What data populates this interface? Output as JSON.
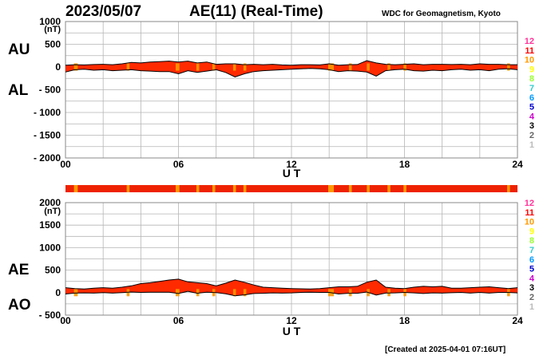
{
  "header": {
    "date": "2023/05/07",
    "title": "AE(11) (Real-Time)",
    "institution": "WDC for Geomagnetism, Kyoto"
  },
  "footer": {
    "created": "[Created at 2025-04-01 07:16UT]"
  },
  "colors": {
    "fill_main": "#ff2a00",
    "fill_minor": "#ff9900",
    "bar": "#ee2200",
    "bar_minor": "#ff9900"
  },
  "legend": {
    "items": [
      {
        "label": "12",
        "color": "#ff3399"
      },
      {
        "label": "11",
        "color": "#ff0000"
      },
      {
        "label": "10",
        "color": "#ff9900"
      },
      {
        "label": "9",
        "color": "#ffff00"
      },
      {
        "label": "8",
        "color": "#99ff33"
      },
      {
        "label": "7",
        "color": "#33cccc"
      },
      {
        "label": "6",
        "color": "#0099ff"
      },
      {
        "label": "5",
        "color": "#0000cc"
      },
      {
        "label": "4",
        "color": "#cc00cc"
      },
      {
        "label": "3",
        "color": "#000000"
      },
      {
        "label": "2",
        "color": "#666666"
      },
      {
        "label": "1",
        "color": "#bbbbbb"
      }
    ]
  },
  "chart_data": [
    {
      "type": "area",
      "name": "AU/AL",
      "upper_label": "AU",
      "lower_label": "AL",
      "unit": "(nT)",
      "xlabel": "U T",
      "x_ticks": [
        "00",
        "06",
        "12",
        "18",
        "24"
      ],
      "y_ticks": [
        "1000",
        "500",
        "0",
        "- 500",
        "- 1000",
        "- 1500",
        "- 2000"
      ],
      "xlim": [
        0,
        24
      ],
      "ylim": [
        -2000,
        1000
      ],
      "x": [
        0,
        0.5,
        1,
        1.5,
        2,
        2.5,
        3,
        3.5,
        4,
        4.5,
        5,
        5.5,
        6,
        6.5,
        7,
        7.5,
        8,
        8.5,
        9,
        9.5,
        10,
        10.5,
        11,
        11.5,
        12,
        12.5,
        13,
        13.5,
        14,
        14.5,
        15,
        15.5,
        16,
        16.5,
        17,
        17.5,
        18,
        18.5,
        19,
        19.5,
        20,
        20.5,
        21,
        21.5,
        22,
        22.5,
        23,
        23.5,
        24
      ],
      "series": [
        {
          "name": "AU",
          "values": [
            40,
            50,
            45,
            55,
            60,
            50,
            70,
            100,
            90,
            110,
            120,
            130,
            110,
            130,
            90,
            110,
            60,
            70,
            70,
            50,
            60,
            50,
            60,
            45,
            40,
            50,
            50,
            45,
            70,
            40,
            50,
            55,
            140,
            90,
            60,
            50,
            60,
            70,
            50,
            60,
            60,
            55,
            60,
            50,
            70,
            60,
            60,
            50,
            50
          ]
        },
        {
          "name": "AL",
          "values": [
            -110,
            -60,
            -50,
            -70,
            -60,
            -80,
            -70,
            -60,
            -80,
            -90,
            -100,
            -100,
            -150,
            -80,
            -120,
            -90,
            -60,
            -120,
            -220,
            -150,
            -100,
            -80,
            -70,
            -60,
            -50,
            -40,
            -30,
            -40,
            -60,
            -100,
            -80,
            -90,
            -110,
            -200,
            -80,
            -60,
            -50,
            -80,
            -90,
            -70,
            -80,
            -60,
            -50,
            -70,
            -60,
            -80,
            -50,
            -40,
            -60
          ]
        }
      ]
    },
    {
      "type": "area",
      "name": "AE/AO",
      "upper_label": "AE",
      "lower_label": "AO",
      "unit": "(nT)",
      "xlabel": "U T",
      "x_ticks": [
        "00",
        "06",
        "12",
        "18",
        "24"
      ],
      "y_ticks": [
        "2000",
        "1500",
        "1000",
        "500",
        "0",
        "- 500"
      ],
      "xlim": [
        0,
        24
      ],
      "ylim": [
        -500,
        2000
      ],
      "x": [
        0,
        0.5,
        1,
        1.5,
        2,
        2.5,
        3,
        3.5,
        4,
        4.5,
        5,
        5.5,
        6,
        6.5,
        7,
        7.5,
        8,
        8.5,
        9,
        9.5,
        10,
        10.5,
        11,
        11.5,
        12,
        12.5,
        13,
        13.5,
        14,
        14.5,
        15,
        15.5,
        16,
        16.5,
        17,
        17.5,
        18,
        18.5,
        19,
        19.5,
        20,
        20.5,
        21,
        21.5,
        22,
        22.5,
        23,
        23.5,
        24
      ],
      "series": [
        {
          "name": "AE",
          "values": [
            110,
            90,
            80,
            100,
            110,
            100,
            120,
            150,
            200,
            220,
            250,
            280,
            300,
            240,
            220,
            200,
            150,
            210,
            280,
            230,
            170,
            120,
            110,
            100,
            90,
            85,
            80,
            90,
            110,
            130,
            130,
            140,
            230,
            280,
            120,
            100,
            90,
            120,
            140,
            130,
            140,
            100,
            100,
            110,
            120,
            130,
            110,
            90,
            110
          ]
        },
        {
          "name": "AO",
          "values": [
            -30,
            -10,
            -5,
            -10,
            0,
            -10,
            0,
            15,
            5,
            10,
            10,
            10,
            -20,
            30,
            -15,
            10,
            0,
            -25,
            -70,
            -50,
            -20,
            -15,
            -5,
            -10,
            -5,
            5,
            10,
            5,
            5,
            -30,
            -15,
            -15,
            15,
            -55,
            -10,
            -5,
            5,
            -5,
            -20,
            -5,
            -10,
            -2,
            5,
            -10,
            5,
            -10,
            5,
            5,
            -5
          ]
        }
      ]
    }
  ],
  "bar_strip": {
    "minor_segments_hours": [
      [
        0.45,
        0.65
      ],
      [
        3.25,
        3.4
      ],
      [
        5.85,
        6.05
      ],
      [
        6.95,
        7.1
      ],
      [
        7.8,
        7.95
      ],
      [
        8.9,
        9.05
      ],
      [
        9.45,
        9.6
      ],
      [
        13.95,
        14.25
      ],
      [
        15.05,
        15.2
      ],
      [
        16.0,
        16.15
      ],
      [
        17.1,
        17.25
      ],
      [
        17.95,
        18.1
      ],
      [
        23.45,
        23.6
      ]
    ]
  }
}
